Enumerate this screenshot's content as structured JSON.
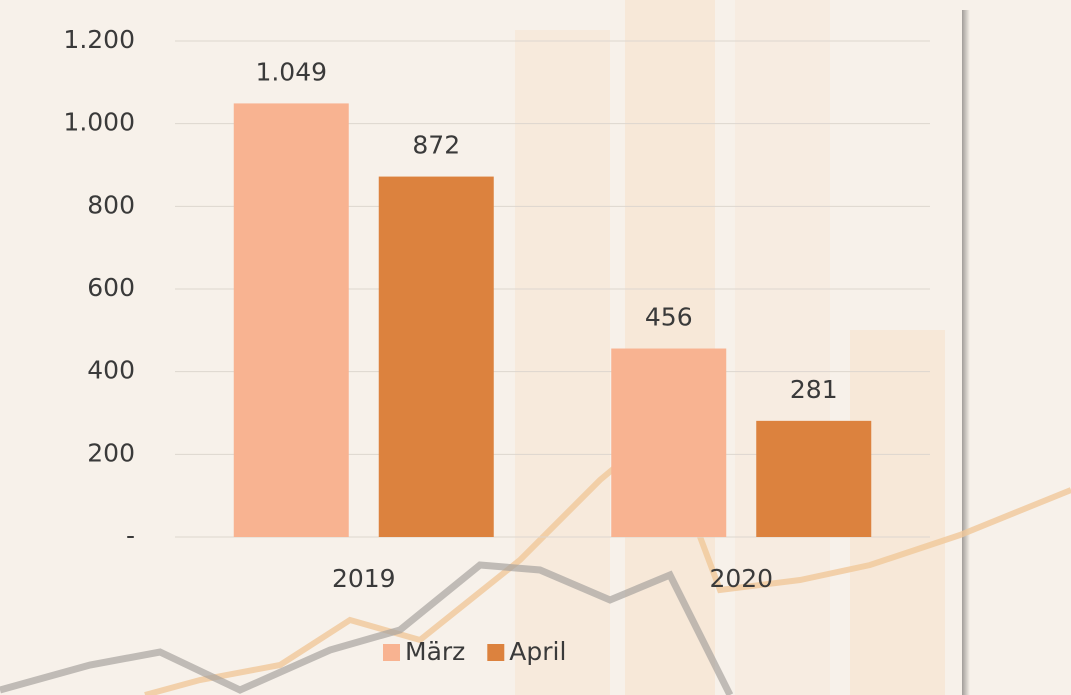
{
  "chart_data": {
    "type": "bar",
    "categories": [
      "2019",
      "2020"
    ],
    "series": [
      {
        "name": "März",
        "color": "#f8b391",
        "values": [
          1049,
          456
        ],
        "value_labels": [
          "1.049",
          "456"
        ]
      },
      {
        "name": "April",
        "color": "#dc823e",
        "values": [
          872,
          281
        ],
        "value_labels": [
          "872",
          "281"
        ]
      }
    ],
    "ylim": [
      0,
      1200
    ],
    "yticks": [
      {
        "value": 0,
        "label": "-"
      },
      200,
      400,
      600,
      800,
      {
        "value": 1000,
        "label": "1.000"
      },
      {
        "value": 1200,
        "label": "1.200"
      }
    ],
    "grid": true
  }
}
